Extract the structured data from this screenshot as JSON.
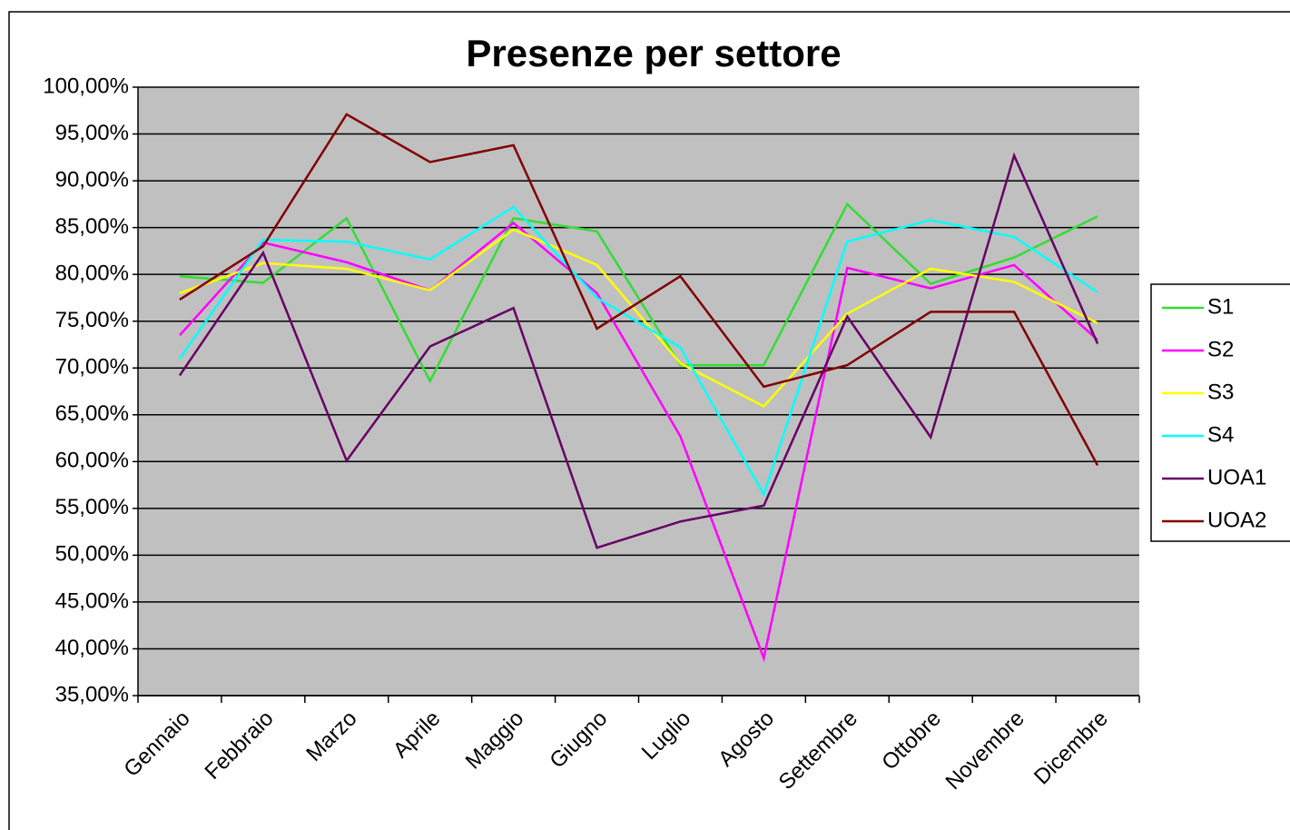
{
  "chart_data": {
    "type": "line",
    "title": "Presenze per settore",
    "categories": [
      "Gennaio",
      "Febbraio",
      "Marzo",
      "Aprile",
      "Maggio",
      "Giugno",
      "Luglio",
      "Agosto",
      "Settembre",
      "Ottobre",
      "Novembre",
      "Dicembre"
    ],
    "series": [
      {
        "name": "S1",
        "color": "#33dd33",
        "values": [
          79.8,
          79.1,
          86,
          68.6,
          86,
          84.6,
          70.3,
          70.3,
          87.5,
          79,
          81.8,
          86.2
        ]
      },
      {
        "name": "S2",
        "color": "#ff00ff",
        "values": [
          73.5,
          83.4,
          81.3,
          78.3,
          85.5,
          78,
          62.7,
          39,
          80.7,
          78.5,
          81,
          73
        ]
      },
      {
        "name": "S3",
        "color": "#ffff00",
        "values": [
          78,
          81.2,
          80.6,
          78.3,
          84.8,
          81,
          70.5,
          65.9,
          75.8,
          80.6,
          79.2,
          74.8
        ]
      },
      {
        "name": "S4",
        "color": "#00ffff",
        "values": [
          71,
          83.7,
          83.5,
          81.6,
          87.2,
          77.5,
          72.2,
          56.5,
          83.5,
          85.8,
          84,
          78.1
        ]
      },
      {
        "name": "UOA1",
        "color": "#660066",
        "values": [
          69.2,
          82.3,
          60.1,
          72.3,
          76.4,
          50.8,
          53.6,
          55.3,
          75.5,
          62.6,
          92.7,
          72.6
        ]
      },
      {
        "name": "UOA2",
        "color": "#800000",
        "values": [
          77.3,
          83,
          97.1,
          92,
          93.8,
          74.2,
          79.8,
          68,
          70.3,
          76,
          76,
          59.6
        ]
      }
    ],
    "ylim": [
      35,
      100
    ],
    "yticks": [
      {
        "value": 35,
        "label": "35,00%"
      },
      {
        "value": 40,
        "label": "40,00%"
      },
      {
        "value": 45,
        "label": "45,00%"
      },
      {
        "value": 50,
        "label": "50,00%"
      },
      {
        "value": 55,
        "label": "55,00%"
      },
      {
        "value": 60,
        "label": "60,00%"
      },
      {
        "value": 65,
        "label": "65,00%"
      },
      {
        "value": 70,
        "label": "70,00%"
      },
      {
        "value": 75,
        "label": "75,00%"
      },
      {
        "value": 80,
        "label": "80,00%"
      },
      {
        "value": 85,
        "label": "85,00%"
      },
      {
        "value": 90,
        "label": "90,00%"
      },
      {
        "value": 95,
        "label": "95,00%"
      },
      {
        "value": 100,
        "label": "100,00%"
      }
    ],
    "grid": true,
    "legend": "right"
  }
}
